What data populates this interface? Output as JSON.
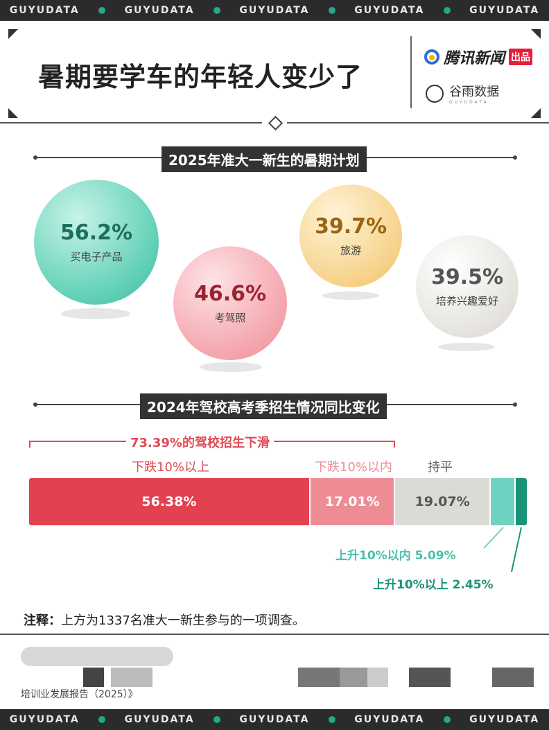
{
  "band_text": "GUYUDATA",
  "header": {
    "title": "暑期要学车的年轻人变少了",
    "brand1": "腾讯新闻",
    "brand1_badge": "出品",
    "brand2": "谷雨数据",
    "brand2_sub": "GUYUDATA"
  },
  "section1": {
    "title": "2025年准大一新生的暑期计划"
  },
  "section2": {
    "title": "2024年驾校高考季招生情况同比变化"
  },
  "colors": {
    "red": "#e2424f",
    "pink": "#ee8c96",
    "gray": "#dcdad5",
    "teal_light": "#6fd2c0",
    "teal_dark": "#1b9378"
  },
  "chart_data": [
    {
      "type": "bubble",
      "title": "2025年准大一新生的暑期计划",
      "unit": "%",
      "categories": [
        "买电子产品",
        "考驾照",
        "旅游",
        "培养兴趣爱好"
      ],
      "values": [
        56.2,
        46.6,
        39.7,
        39.5
      ],
      "labels": [
        "56.2%",
        "46.6%",
        "39.7%",
        "39.5%"
      ]
    },
    {
      "type": "stacked-bar",
      "title": "2024年驾校高考季招生情况同比变化",
      "unit": "%",
      "categories": [
        "下跌10%以上",
        "下跌10%以内",
        "持平",
        "上升10%以内",
        "上升10%以上"
      ],
      "values": [
        56.38,
        17.01,
        19.07,
        5.09,
        2.45
      ],
      "labels": [
        "56.38%",
        "17.01%",
        "19.07%",
        "5.09%",
        "2.45%"
      ],
      "annotation": "73.39%的驾校招生下滑",
      "callouts": [
        "上升10%以内 5.09%",
        "上升10%以上 2.45%"
      ]
    }
  ],
  "note": {
    "prefix": "注释：",
    "text": "上方为1337名准大一新生参与的一项调查。"
  },
  "source_text": "培训业发展报告（2025）》"
}
